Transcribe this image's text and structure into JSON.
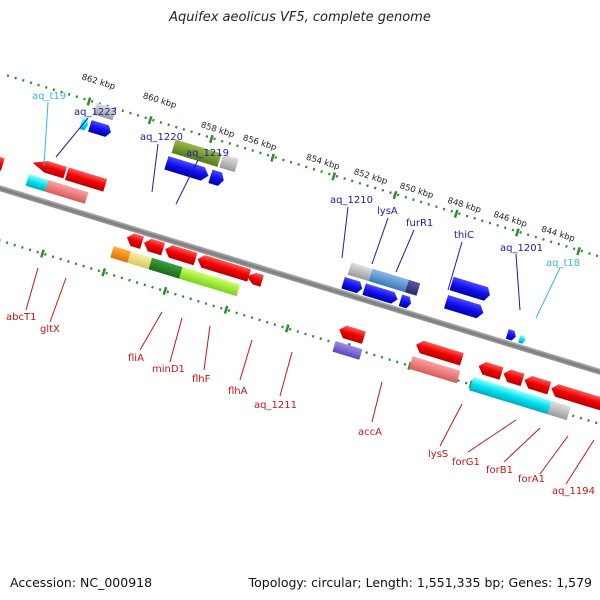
{
  "header": {
    "title": "Aquifex aeolicus VF5, complete genome"
  },
  "footer": {
    "accession": "Accession: NC_000918",
    "topology": "Topology: circular; Length: 1,551,335 bp; Genes: 1,579"
  },
  "colors": {
    "backbone": "#8a8a8a",
    "tick": "#2e8b2e",
    "forward_label": "#1a1aa8",
    "reverse_label": "#c81414",
    "trna_label": "#39b6e0"
  },
  "kbp_labels": [
    "862 kbp",
    "860 kbp",
    "858 kbp",
    "856 kbp",
    "854 kbp",
    "852 kbp",
    "850 kbp",
    "848 kbp",
    "846 kbp",
    "844 kbp"
  ],
  "gene_labels_top": [
    "aq_t19",
    "aq_1223",
    "aq_1220",
    "aq_1219",
    "aq_1210",
    "lysA",
    "furR1",
    "thiC",
    "aq_1201",
    "aq_t18"
  ],
  "gene_labels_bottom": [
    "abcT1",
    "gltX",
    "fliA",
    "minD1",
    "flhF",
    "flhA",
    "aq_1211",
    "accA",
    "lysS",
    "forG1",
    "forB1",
    "forA1",
    "aq_1194"
  ]
}
